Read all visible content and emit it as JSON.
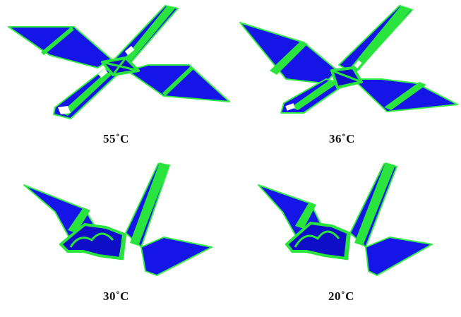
{
  "colors": {
    "sheet": "#1515e8",
    "sheet_dark": "#0a0aa8",
    "fold": "#28e43c",
    "edge": "#33ee44"
  },
  "panels": [
    {
      "label": "55˚C",
      "stage": "flat"
    },
    {
      "label": "36˚C",
      "stage": "partially-folded"
    },
    {
      "label": "30˚C",
      "stage": "mostly-folded"
    },
    {
      "label": "20˚C",
      "stage": "fully-folded"
    }
  ]
}
